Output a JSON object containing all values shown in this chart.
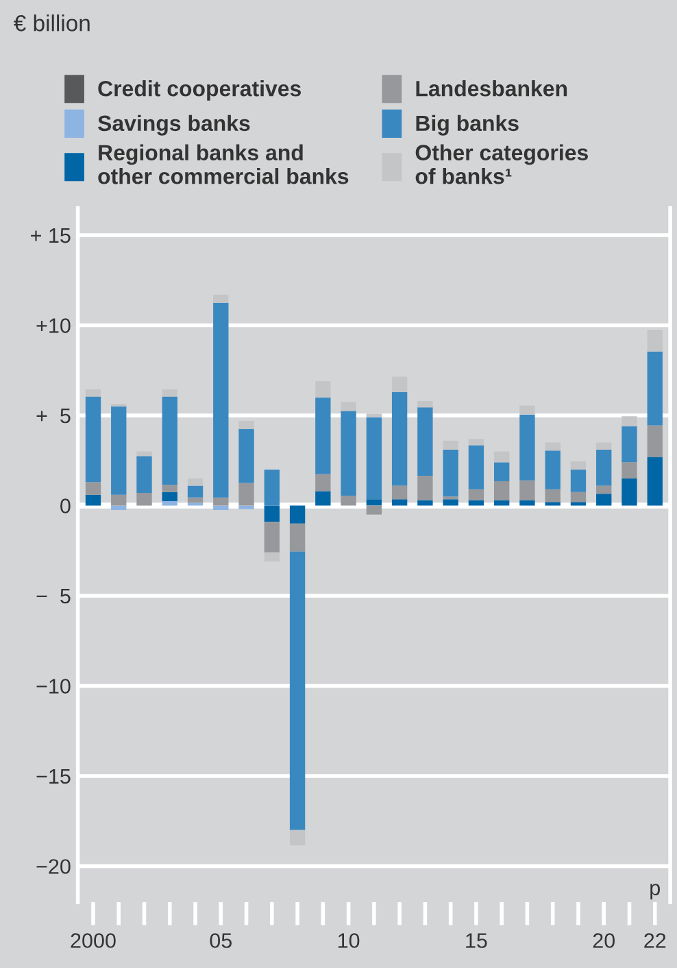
{
  "chart_data": {
    "type": "bar",
    "stacked": true,
    "title": "€ billion",
    "categories": [
      "2000",
      null,
      null,
      null,
      null,
      "05",
      null,
      null,
      null,
      null,
      "10",
      null,
      null,
      null,
      null,
      "15",
      null,
      null,
      null,
      null,
      "20",
      null,
      "22"
    ],
    "series": [
      {
        "name": "Credit cooperatives",
        "color": "#58595b",
        "values": [
          0,
          0,
          0,
          0,
          0,
          0,
          0,
          0,
          0,
          0,
          0,
          0,
          0,
          0,
          0,
          0,
          0,
          0,
          0,
          0,
          0,
          0,
          0
        ]
      },
      {
        "name": "Savings banks",
        "color": "#8db4e2",
        "values": [
          0,
          -0.25,
          0,
          0.25,
          0.15,
          -0.25,
          -0.2,
          0,
          0,
          0,
          0,
          0,
          0,
          0,
          0,
          0,
          0,
          0,
          0,
          0,
          0,
          0,
          0
        ]
      },
      {
        "name": "Regional banks and\nother commercial banks",
        "color": "#0066a6",
        "values": [
          0.6,
          0,
          0,
          0.5,
          0,
          0,
          0,
          -0.9,
          -1.0,
          0.8,
          0,
          0.35,
          0.35,
          0.3,
          0.35,
          0.3,
          0.3,
          0.3,
          0.2,
          0.2,
          0.65,
          1.5,
          2.7
        ]
      },
      {
        "name": "Landesbanken",
        "color": "#97989b",
        "values": [
          0.7,
          0.6,
          0.7,
          0.4,
          0.3,
          0.45,
          1.25,
          -1.7,
          -1.55,
          0.95,
          0.55,
          -0.5,
          0.75,
          1.35,
          0.15,
          0.6,
          1.05,
          1.1,
          0.7,
          0.55,
          0.45,
          0.9,
          1.75
        ]
      },
      {
        "name": "Big banks",
        "color": "#3a88c0",
        "values": [
          4.75,
          4.9,
          2.05,
          4.9,
          0.65,
          10.8,
          3.0,
          2.0,
          -15.45,
          4.25,
          4.7,
          4.55,
          5.2,
          3.8,
          2.6,
          2.45,
          1.05,
          3.65,
          2.15,
          1.25,
          2.0,
          2.0,
          4.1
        ]
      },
      {
        "name": "Other categories\nof banks¹",
        "color": "#c4c5c7",
        "values": [
          0.4,
          0.15,
          0.25,
          0.4,
          0.4,
          0.45,
          0.45,
          -0.5,
          -0.85,
          0.9,
          0.5,
          0.2,
          0.85,
          0.35,
          0.5,
          0.35,
          0.6,
          0.5,
          0.45,
          0.45,
          0.4,
          0.55,
          1.2
        ]
      }
    ],
    "ylim": [
      -22,
      16.5
    ],
    "yticks": [
      {
        "value": 15,
        "label": "+ 15"
      },
      {
        "value": 10,
        "label": "+10"
      },
      {
        "value": 5,
        "label": "+  5"
      },
      0,
      {
        "value": -5,
        "label": "−  5"
      },
      {
        "value": -10,
        "label": "−10"
      },
      {
        "value": -15,
        "label": "−15"
      },
      {
        "value": -20,
        "label": "−20"
      }
    ],
    "grid": "y",
    "legend": "top",
    "annotations": [
      "p"
    ]
  }
}
